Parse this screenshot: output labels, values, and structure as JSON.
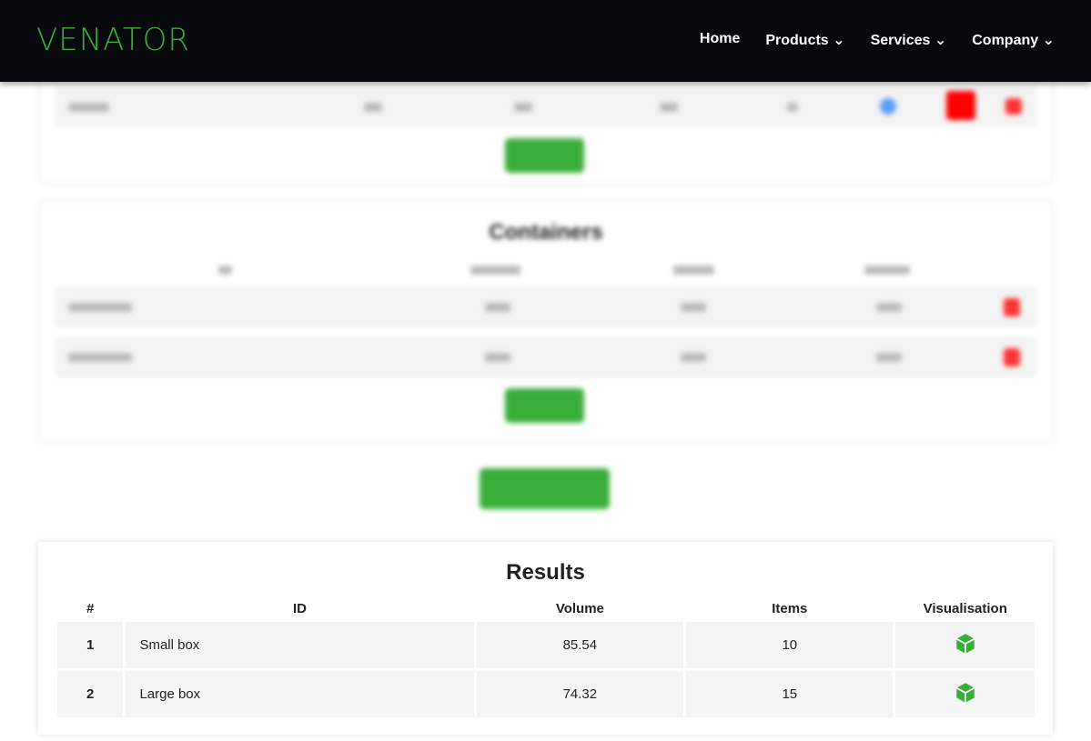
{
  "nav": {
    "logo": "VENATOR",
    "items": [
      {
        "label": "Home"
      },
      {
        "label": "Products ⌄"
      },
      {
        "label": "Services ⌄"
      },
      {
        "label": "Company ⌄"
      }
    ]
  },
  "containers": {
    "title": "Containers"
  },
  "results": {
    "title": "Results",
    "columns": [
      "#",
      "ID",
      "Volume",
      "Items",
      "Visualisation"
    ],
    "rows": [
      {
        "n": "1",
        "id": "Small box",
        "volume": "85.54",
        "items": "10"
      },
      {
        "n": "2",
        "id": "Large box",
        "volume": "74.32",
        "items": "15"
      }
    ]
  },
  "colors": {
    "accent": "#3aae3a",
    "nav_bg": "#08090c"
  },
  "icons": {
    "visualise": "cube-icon"
  }
}
